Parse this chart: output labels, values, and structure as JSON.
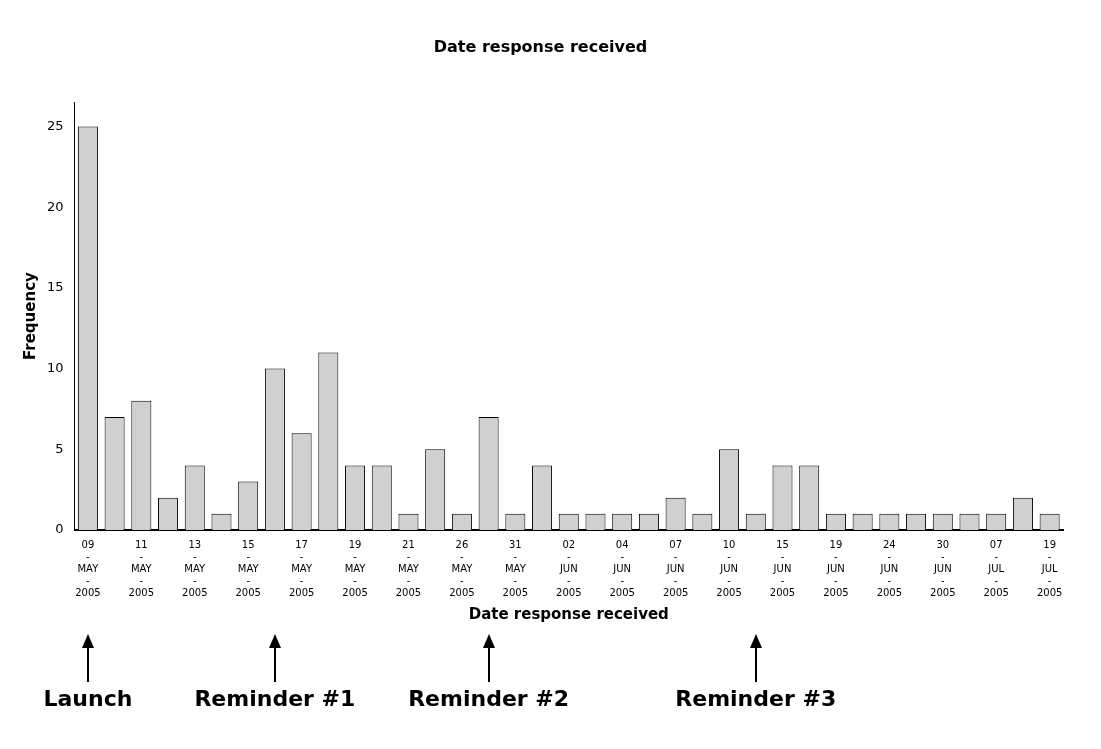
{
  "chart_data": {
    "type": "bar",
    "title": "Date response received",
    "xlabel": "Date response received",
    "ylabel": "Frequency",
    "categories": [
      "09-MAY-2005",
      null,
      "11-MAY-2005",
      null,
      "13-MAY-2005",
      null,
      "15-MAY-2005",
      null,
      "17-MAY-2005",
      null,
      "19-MAY-2005",
      null,
      "21-MAY-2005",
      null,
      "26-MAY-2005",
      null,
      "31-MAY-2005",
      null,
      "02-JUN-2005",
      null,
      "04-JUN-2005",
      null,
      "07-JUN-2005",
      null,
      "10-JUN-2005",
      null,
      "15-JUN-2005",
      null,
      "19-JUN-2005",
      null,
      "24-JUN-2005",
      null,
      "30-JUN-2005",
      null,
      "07-JUL-2005",
      null,
      "19-JUL-2005"
    ],
    "values": [
      25,
      7,
      8,
      2,
      4,
      1,
      3,
      10,
      6,
      11,
      4,
      4,
      1,
      5,
      1,
      7,
      1,
      4,
      1,
      1,
      1,
      1,
      2,
      1,
      5,
      1,
      4,
      4,
      1,
      1,
      1,
      1,
      1,
      1,
      1,
      2,
      1
    ],
    "color": "#d0d0d0",
    "ylim": [
      0,
      26.5
    ],
    "yticks": [
      0,
      5,
      10,
      15,
      20,
      25
    ],
    "grid": false,
    "legend": false,
    "annotations": [
      "Launch",
      "Reminder #1",
      "Reminder #2",
      "Reminder #3"
    ]
  }
}
